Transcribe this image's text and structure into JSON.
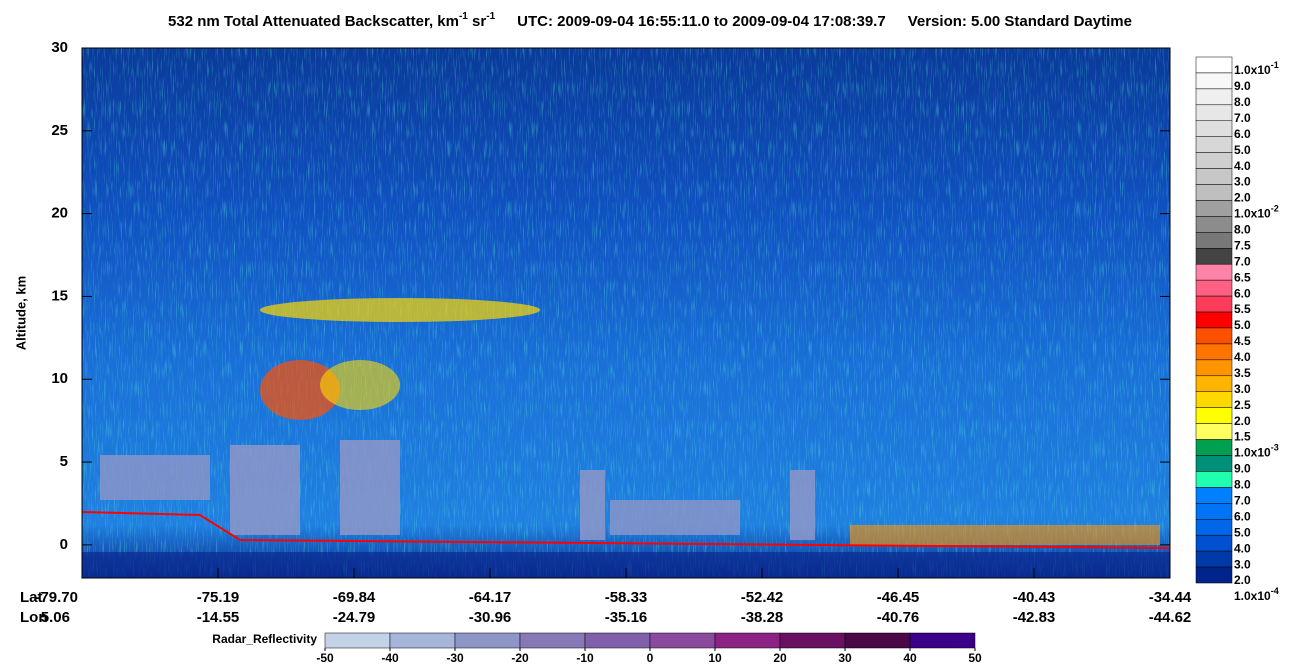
{
  "chart_data": {
    "type": "curtain",
    "title_parts": [
      "532 nm Total Attenuated Backscatter, km",
      "-1",
      " sr",
      "-1",
      "UTC:  2009-09-04 16:55:11.0  to  2009-09-04 17:08:39.7",
      "Version: 5.00  Standard  Daytime"
    ],
    "ylabel": "Altitude, km",
    "ylim": [
      -2,
      30
    ],
    "yticks": [
      0,
      5,
      10,
      15,
      20,
      25,
      30
    ],
    "x_rows": [
      "Lat",
      "Lon"
    ],
    "lat": [
      "-79.70",
      "-75.19",
      "-69.84",
      "-64.17",
      "-58.33",
      "-52.42",
      "-46.45",
      "-40.43",
      "-34.44"
    ],
    "lon": [
      "5.06",
      "-14.55",
      "-24.79",
      "-30.96",
      "-35.16",
      "-38.28",
      "-40.76",
      "-42.83",
      "-44.62"
    ],
    "colorbar": {
      "labels": [
        {
          "text": "1.0x10",
          "sup": "-1"
        },
        "9.0",
        "8.0",
        "7.0",
        "6.0",
        "5.0",
        "4.0",
        "3.0",
        "2.0",
        {
          "text": "1.0x10",
          "sup": "-2"
        },
        "8.0",
        "7.5",
        "7.0",
        "6.5",
        "6.0",
        "5.5",
        "5.0",
        "4.5",
        "4.0",
        "3.5",
        "3.0",
        "2.5",
        "2.0",
        "1.5",
        {
          "text": "1.0x10",
          "sup": "-3"
        },
        "9.0",
        "8.0",
        "7.0",
        "6.0",
        "5.0",
        "4.0",
        "3.0",
        "2.0",
        {
          "text": "1.0x10",
          "sup": "-4"
        }
      ],
      "colors": [
        "#ffffff",
        "#f7f7f7",
        "#efefef",
        "#e7e7e7",
        "#dfdfdf",
        "#d7d7d7",
        "#cfcfcf",
        "#c7c7c7",
        "#bfbfbf",
        "#a0a0a0",
        "#8c8c8c",
        "#787878",
        "#444444",
        "#ff82a8",
        "#ff6084",
        "#ff3c5a",
        "#ff0000",
        "#ff5000",
        "#ff7400",
        "#ff9400",
        "#ffb400",
        "#ffd800",
        "#ffff00",
        "#ffff60",
        "#00a050",
        "#00907a",
        "#20ffb0",
        "#0080ff",
        "#0074f4",
        "#0068e8",
        "#0050d0",
        "#003aa8",
        "#00248c"
      ]
    },
    "radar": {
      "label": "Radar_Reflectivity",
      "ticks": [
        -50,
        -40,
        -30,
        -20,
        -10,
        0,
        10,
        20,
        30,
        40,
        50
      ],
      "colors": [
        "#c4d2e8",
        "#a6b6da",
        "#8e96c8",
        "#8878b8",
        "#8060aa",
        "#8a4a9e",
        "#8c2284",
        "#6a1062",
        "#4a0848",
        "#3c0088"
      ]
    }
  }
}
